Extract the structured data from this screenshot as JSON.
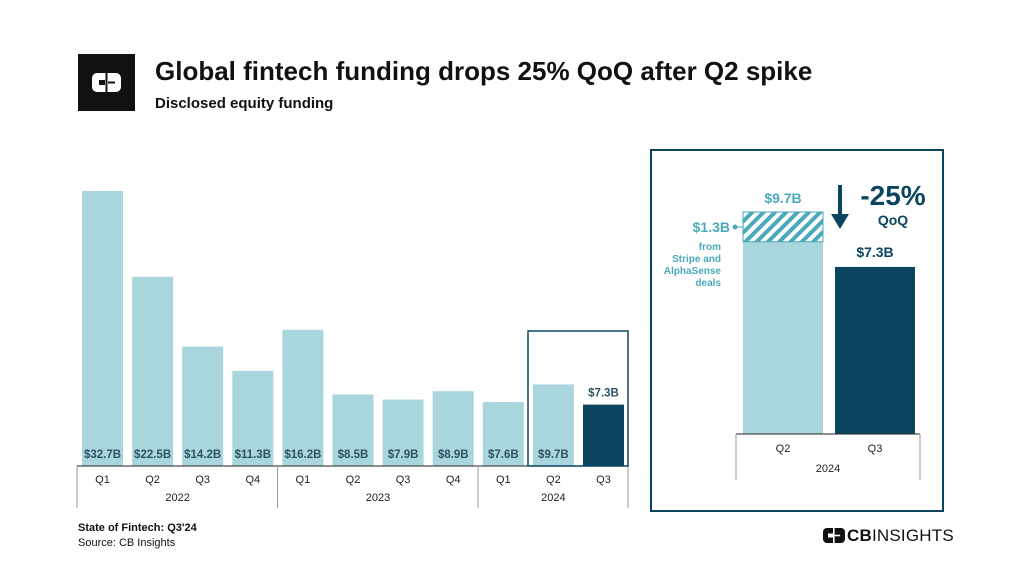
{
  "header": {
    "title": "Global fintech funding drops 25% QoQ after Q2 spike",
    "subtitle": "Disclosed equity funding"
  },
  "footer": {
    "report": "State of Fintech: Q3'24",
    "source": "Source: CB Insights"
  },
  "brand": {
    "cb": "CB",
    "insights": "INSIGHTS"
  },
  "colors": {
    "light": "#a9d5dd",
    "dark": "#0b4560",
    "label": "#2d5363",
    "accent": "#4aa9bb"
  },
  "chart_data": [
    {
      "type": "bar",
      "categories": [
        "Q1",
        "Q2",
        "Q3",
        "Q4",
        "Q1",
        "Q2",
        "Q3",
        "Q4",
        "Q1",
        "Q2",
        "Q3"
      ],
      "groups": [
        {
          "label": "2022",
          "count": 4
        },
        {
          "label": "2023",
          "count": 4
        },
        {
          "label": "2024",
          "count": 3
        }
      ],
      "values": [
        32.7,
        22.5,
        14.2,
        11.3,
        16.2,
        8.5,
        7.9,
        8.9,
        7.6,
        9.7,
        7.3
      ],
      "labels": [
        "$32.7B",
        "$22.5B",
        "$14.2B",
        "$11.3B",
        "$16.2B",
        "$8.5B",
        "$7.9B",
        "$8.9B",
        "$7.6B",
        "$9.7B",
        "$7.3B"
      ],
      "highlight_index": 10,
      "ylim": [
        0,
        35
      ]
    },
    {
      "type": "bar",
      "categories": [
        "Q2",
        "Q3"
      ],
      "group_label": "2024",
      "values": [
        9.7,
        7.3
      ],
      "labels": [
        "$9.7B",
        "$7.3B"
      ],
      "segment": {
        "value": 1.3,
        "label": "$1.3B",
        "note": [
          "from",
          "Stripe and",
          "AlphaSense",
          "deals"
        ]
      },
      "change": {
        "value": "-25%",
        "unit": "QoQ"
      }
    }
  ]
}
